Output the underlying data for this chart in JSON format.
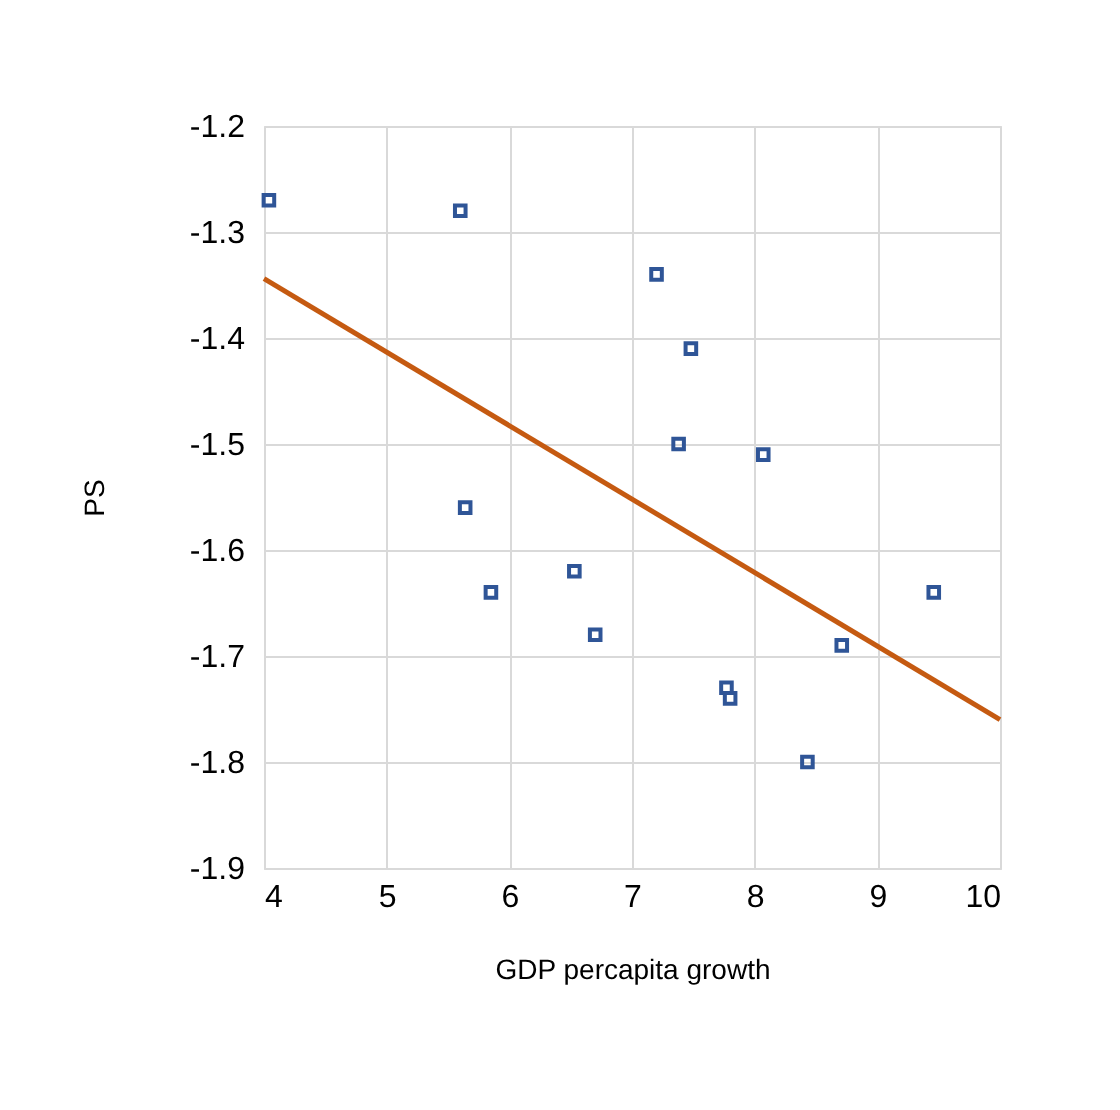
{
  "chart_data": {
    "type": "scatter",
    "xlabel": "GDP percapita growth",
    "ylabel": "PS",
    "xlim": [
      4,
      10
    ],
    "xticks": [
      4,
      5,
      6,
      7,
      8,
      9,
      10
    ],
    "ylim": [
      -1.9,
      -1.2
    ],
    "yticks": [
      -1.9,
      -1.8,
      -1.7,
      -1.6,
      -1.5,
      -1.4,
      -1.3,
      -1.2
    ],
    "grid": true,
    "marker": "square",
    "series": [
      {
        "color": "#2f5597",
        "x": [
          4.04,
          5.6,
          5.64,
          5.85,
          6.53,
          6.7,
          7.2,
          7.48,
          7.38,
          8.07,
          9.46,
          8.71,
          7.77,
          7.8,
          8.43
        ],
        "values": [
          -1.27,
          -1.28,
          -1.56,
          -1.64,
          -1.62,
          -1.68,
          -1.34,
          -1.41,
          -1.5,
          -1.51,
          -1.64,
          -1.69,
          -1.73,
          -1.74,
          -1.8
        ]
      },
      {
        "type": "line",
        "color": "#c55a11",
        "line_style": "solid",
        "marker": "none",
        "x": [
          4,
          10
        ],
        "values": [
          -1.344,
          -1.76
        ]
      }
    ]
  }
}
